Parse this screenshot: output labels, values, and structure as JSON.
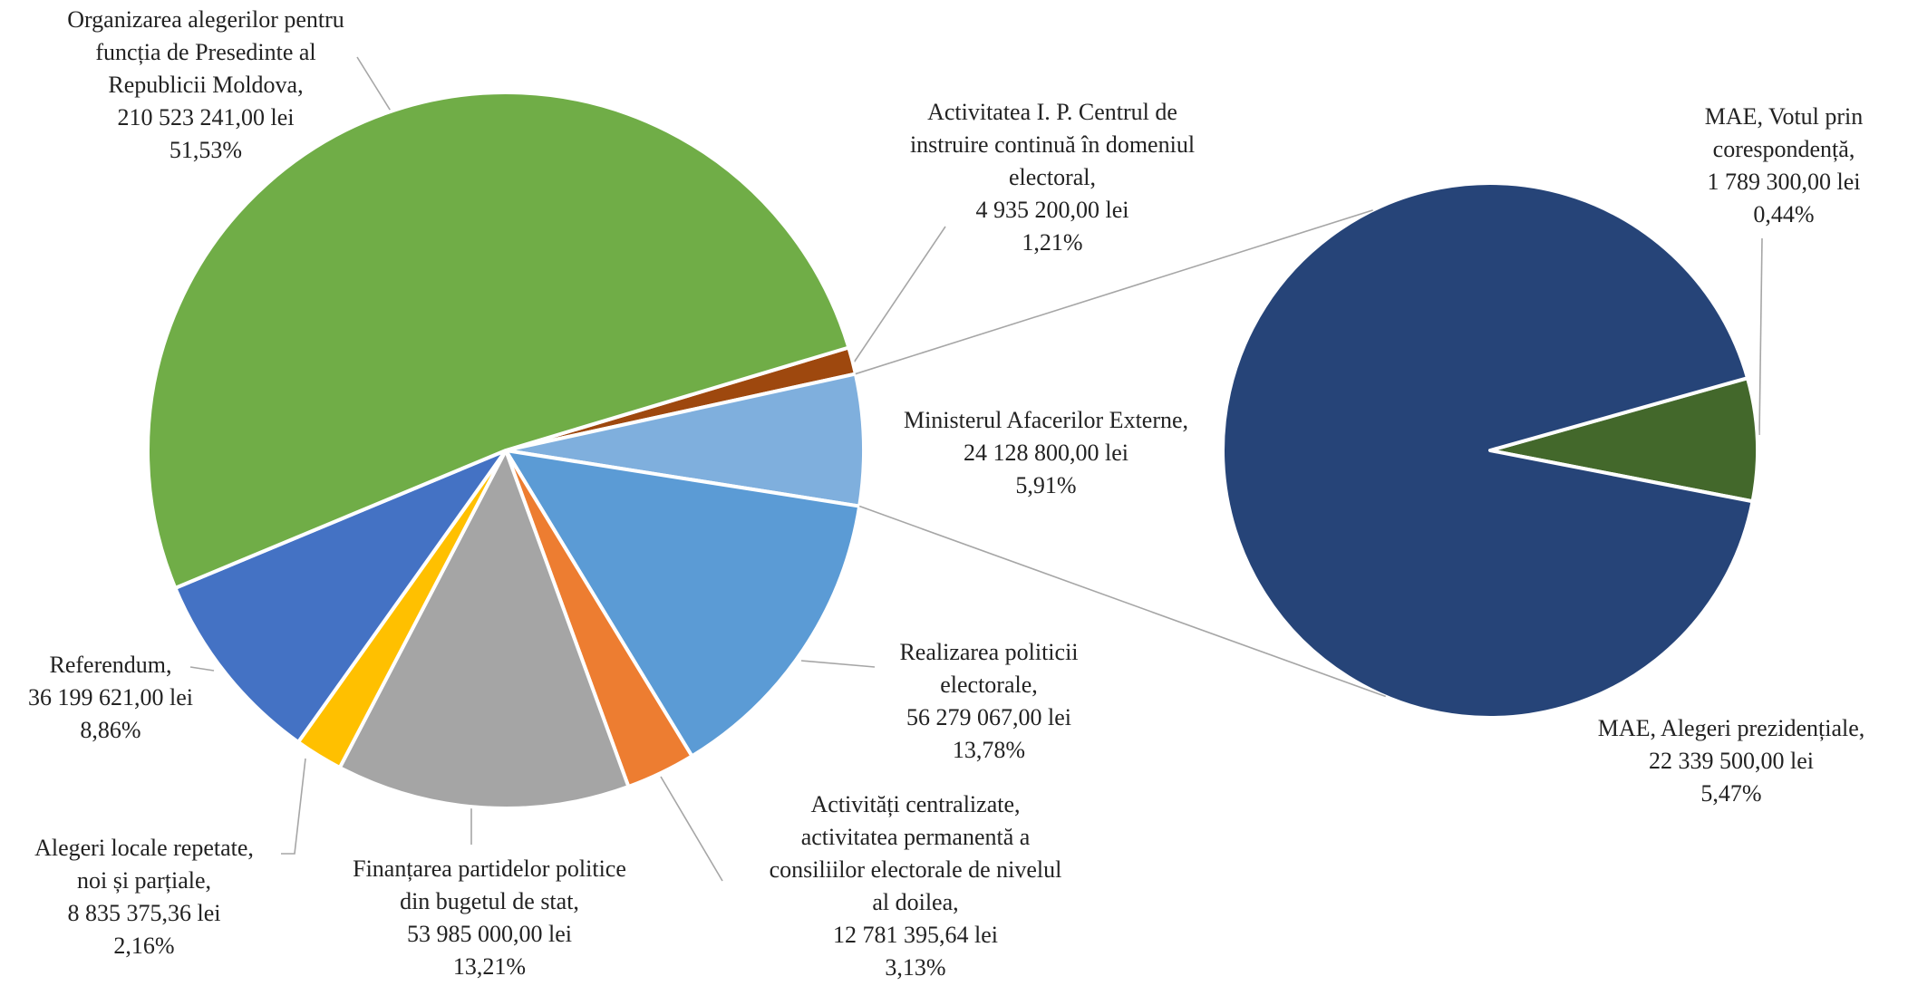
{
  "chart_data": [
    {
      "type": "pie",
      "categories": [
        [
          "Activitatea I. P. Centrul de",
          "instruire continuă în domeniul",
          "electoral,"
        ],
        [
          "Ministerul Afacerilor Externe,"
        ],
        [
          "Realizarea politicii",
          "electorale,"
        ],
        [
          "Activități centralizate,",
          "activitatea permanentă a",
          "consiliilor electorale de nivelul",
          "al doilea,"
        ],
        [
          "Finanțarea partidelor politice",
          "din bugetul de stat,"
        ],
        [
          "Alegeri locale repetate,",
          "noi și parțiale,"
        ],
        [
          "Referendum,"
        ],
        [
          "Organizarea alegerilor pentru",
          "funcția de Presedinte al",
          "Republicii Moldova,"
        ]
      ],
      "values": [
        4935200.0,
        24128800.0,
        56279067.0,
        12781395.64,
        53985000.0,
        8835375.36,
        36199621.0,
        210523241.0
      ],
      "value_labels": [
        "4 935 200,00 lei",
        "24 128 800,00 lei",
        "56 279 067,00 lei",
        "12 781 395,64 lei",
        "53 985 000,00 lei",
        "8 835 375,36 lei",
        "36 199 621,00 lei",
        "210 523 241,00 lei"
      ],
      "shares": [
        1.21,
        5.91,
        13.78,
        3.13,
        13.21,
        2.16,
        8.86,
        51.53
      ],
      "share_labels": [
        "1,21%",
        "5,91%",
        "13,78%",
        "3,13%",
        "13,21%",
        "2,16%",
        "8,86%",
        "51,53%"
      ],
      "colors": [
        "#9e480e",
        "#7fafdd",
        "#5b9bd5",
        "#ed7d31",
        "#a5a5a5",
        "#ffc000",
        "#4472c4",
        "#70ad47"
      ]
    },
    {
      "type": "pie",
      "categories": [
        [
          "MAE, Votul prin",
          "corespondență,"
        ],
        [
          "MAE, Alegeri prezidențiale,"
        ]
      ],
      "values": [
        1789300.0,
        22339500.0
      ],
      "value_labels": [
        "1 789 300,00 lei",
        "22 339 500,00 lei"
      ],
      "shares": [
        0.44,
        5.47
      ],
      "share_labels": [
        "0,44%",
        "5,47%"
      ],
      "colors": [
        "#43682b",
        "#264478"
      ]
    }
  ]
}
